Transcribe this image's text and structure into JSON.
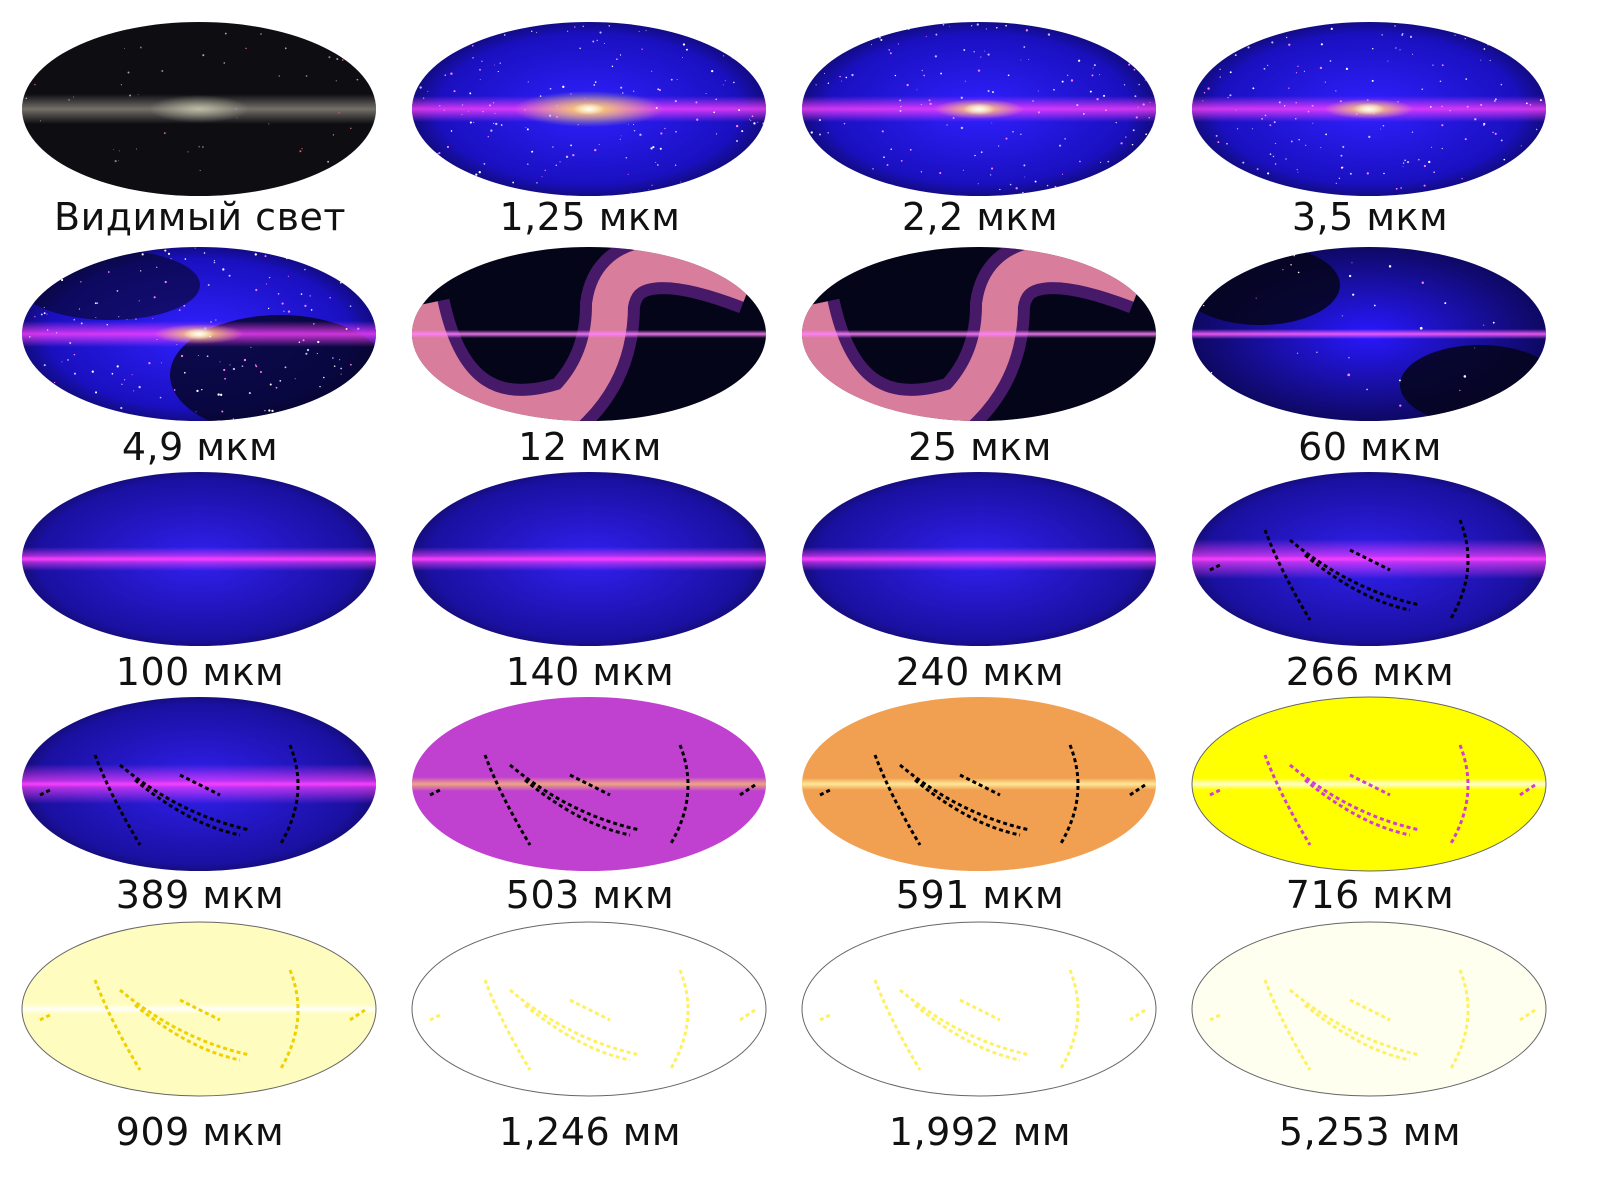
{
  "panels": [
    {
      "label": "Видимый свет",
      "palette": "visible"
    },
    {
      "label": "1,25 мкм",
      "palette": "nir_bulge"
    },
    {
      "label": "2,2 мкм",
      "palette": "nir"
    },
    {
      "label": "3,5 мкм",
      "palette": "nir"
    },
    {
      "label": "4,9 мкм",
      "palette": "nir_faint"
    },
    {
      "label": "12 мкм",
      "palette": "zodiacal"
    },
    {
      "label": "25 мкм",
      "palette": "zodiacal"
    },
    {
      "label": "60 мкм",
      "palette": "fir_wave"
    },
    {
      "label": "100 мкм",
      "palette": "dust"
    },
    {
      "label": "140 мкм",
      "palette": "dust"
    },
    {
      "label": "240 мкм",
      "palette": "dust"
    },
    {
      "label": "266 мкм",
      "palette": "dust_streaks"
    },
    {
      "label": "389 мкм",
      "palette": "dust_streaks"
    },
    {
      "label": "503 мкм",
      "palette": "magenta_streaks"
    },
    {
      "label": "591 мкм",
      "palette": "orange_streaks"
    },
    {
      "label": "716 мкм",
      "palette": "yellow_streaks"
    },
    {
      "label": "909 мкм",
      "palette": "pale_yellow"
    },
    {
      "label": "1,246 мм",
      "palette": "white"
    },
    {
      "label": "1,992 мм",
      "palette": "white"
    },
    {
      "label": "5,253 мм",
      "palette": "white_cream"
    }
  ],
  "colors": {
    "background": "#ffffff",
    "caption": "#111111",
    "sky_dark": "#05051a",
    "sky_blue": "#2a1cff",
    "plane_yellow": "#ffe060",
    "plane_white": "#fffff0",
    "zodiacal_peach": "#ffb070",
    "magenta": "#c040d0",
    "orange": "#f0a050",
    "yellow": "#ffff00"
  }
}
